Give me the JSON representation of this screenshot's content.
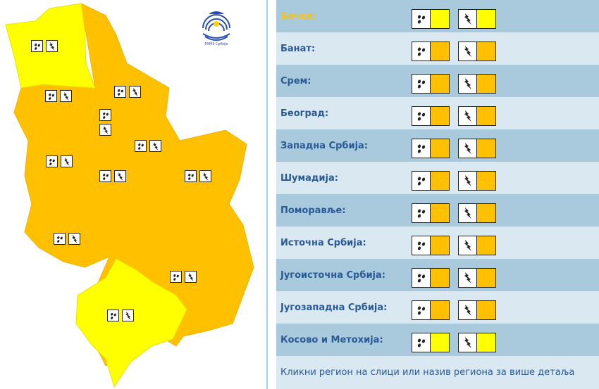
{
  "colors": {
    "yellow": "#ffff00",
    "orange": "#ffc000",
    "panel_dark": "#a9c9dd",
    "panel_light": "#dae8f1",
    "region_text": "#2a5a95",
    "active_region_text": "#f5c21b"
  },
  "logo": {
    "text": "РХМЗ Србије"
  },
  "regions": [
    {
      "name": "Бачка:",
      "rain": "yellow",
      "storm": "yellow",
      "active": true
    },
    {
      "name": "Банат:",
      "rain": "orange",
      "storm": "orange"
    },
    {
      "name": "Срем:",
      "rain": "orange",
      "storm": "orange"
    },
    {
      "name": "Београд:",
      "rain": "orange",
      "storm": "orange"
    },
    {
      "name": "Западна Србија:",
      "rain": "orange",
      "storm": "orange"
    },
    {
      "name": "Шумадија:",
      "rain": "orange",
      "storm": "orange"
    },
    {
      "name": "Поморавље:",
      "rain": "orange",
      "storm": "orange"
    },
    {
      "name": "Источна Србија:",
      "rain": "orange",
      "storm": "orange"
    },
    {
      "name": "Југоисточна Србија:",
      "rain": "orange",
      "storm": "orange"
    },
    {
      "name": "Југозападна Србија:",
      "rain": "orange",
      "storm": "orange"
    },
    {
      "name": "Косово и Метохија:",
      "rain": "yellow",
      "storm": "yellow"
    }
  ],
  "icons": {
    "rain": "rain-drops-icon",
    "storm": "lightning-icon"
  },
  "footer": "Кликни регион на слици или назив региона за више детаља"
}
